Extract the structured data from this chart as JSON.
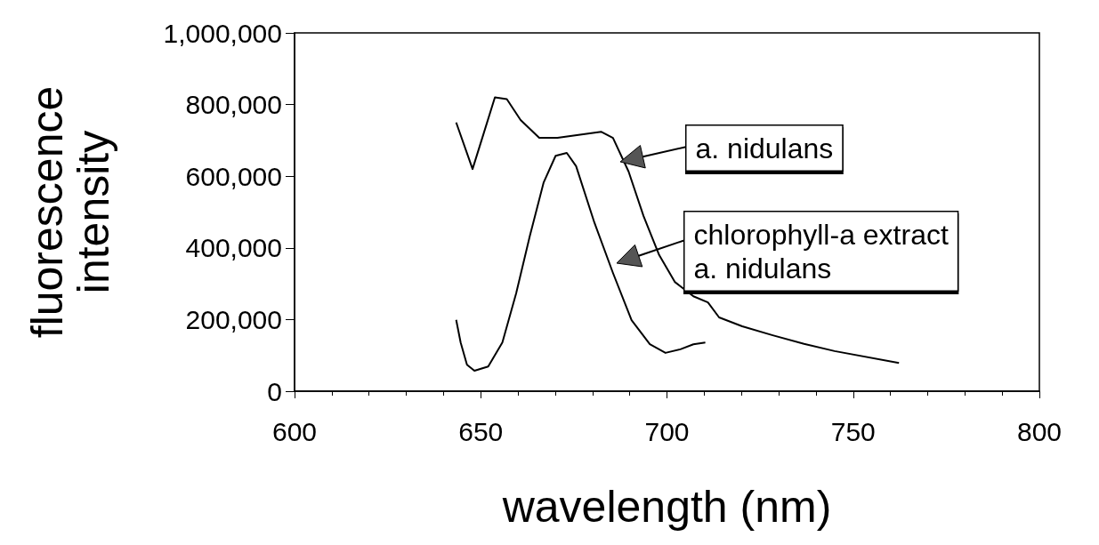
{
  "chart_data": {
    "type": "line",
    "xlabel": "wavelength (nm)",
    "ylabel": "fluorescence intensity",
    "xlim": [
      600,
      800
    ],
    "xticks": [
      600,
      650,
      700,
      750,
      800
    ],
    "ylim": [
      0,
      1000000
    ],
    "yticks": [
      {
        "value": 0,
        "label": "0"
      },
      {
        "value": 200000,
        "label": "200,000"
      },
      {
        "value": 400000,
        "label": "400,000"
      },
      {
        "value": 600000,
        "label": "600,000"
      },
      {
        "value": 800000,
        "label": "800,000"
      },
      {
        "value": 1000000,
        "label": "1,000,000"
      }
    ],
    "grid": false,
    "legend": "right",
    "marker": "none",
    "line_style": "solid",
    "series": [
      {
        "name": "a. nidulans",
        "color": "#000000",
        "x": [
          643.4,
          647.8,
          650.8,
          653.8,
          657,
          660.7,
          665.7,
          670.6,
          682.3,
          685.5,
          689.7,
          693.7,
          697.9,
          702.1,
          707.1,
          711,
          714,
          720.2,
          728.4,
          736.8,
          745,
          762.3
        ],
        "values": [
          750000,
          620000,
          720000,
          820000,
          815000,
          757000,
          707000,
          707000,
          724000,
          707000,
          613000,
          489000,
          380000,
          305000,
          265000,
          248000,
          206000,
          181000,
          156000,
          132000,
          112000,
          79000
        ]
      },
      {
        "name": "chlorophyll-a extract\na. nidulans",
        "color": "#000000",
        "x": [
          643.4,
          644.6,
          646.3,
          648.3,
          652,
          655.8,
          659.5,
          663.2,
          666.9,
          670.1,
          673.1,
          675.6,
          680.5,
          685.5,
          690.5,
          695.4,
          699.6,
          703.6,
          707.1,
          710.3
        ],
        "values": [
          199000,
          136000,
          74000,
          57000,
          69000,
          136000,
          273000,
          434000,
          583000,
          657000,
          665000,
          628000,
          471000,
          330000,
          198000,
          131000,
          107000,
          117000,
          131000,
          136000
        ]
      }
    ]
  }
}
